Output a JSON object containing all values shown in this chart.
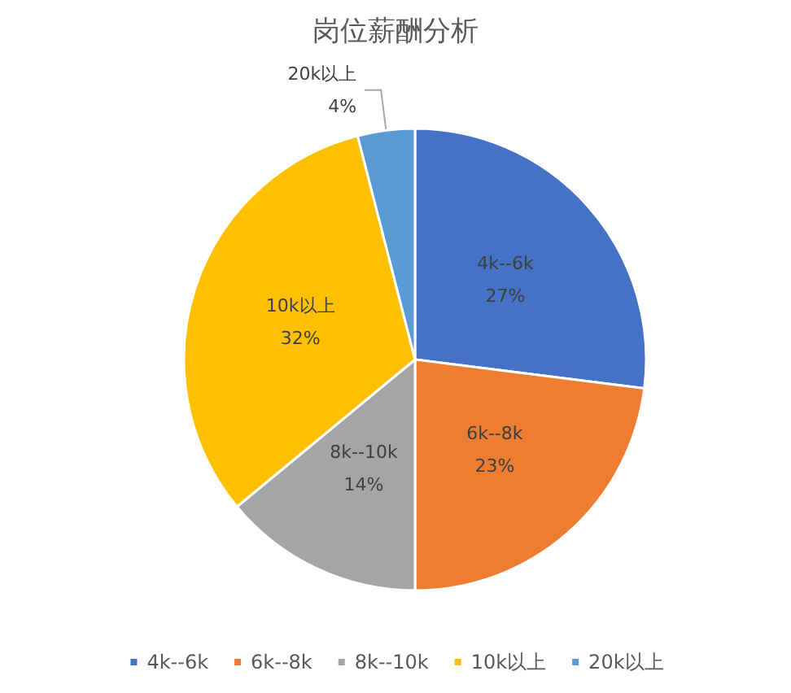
{
  "chart_data": {
    "type": "pie",
    "title": "岗位薪酬分析",
    "categories": [
      "4k--6k",
      "6k--8k",
      "8k--10k",
      "10k以上",
      "20k以上"
    ],
    "values": [
      27,
      23,
      14,
      32,
      4
    ],
    "value_labels": [
      "27%",
      "23%",
      "14%",
      "32%",
      "4%"
    ],
    "colors": [
      "#4472c4",
      "#ed7d31",
      "#a5a5a5",
      "#ffc000",
      "#5b9bd5"
    ],
    "legend": "bottom"
  }
}
